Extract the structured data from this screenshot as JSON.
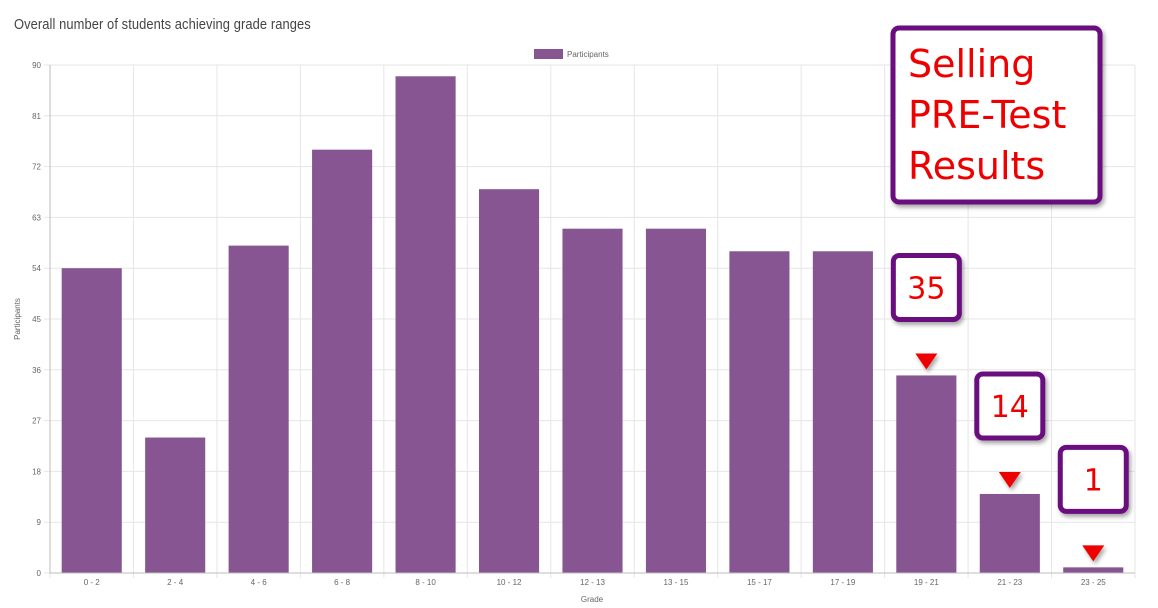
{
  "page": {
    "title": "Overall number of students achieving grade ranges"
  },
  "colors": {
    "bar": "#865592",
    "grid": "#e6e6e6",
    "axis": "#bdbdbd",
    "callout_border": "#6b0f7f",
    "callout_text": "#ee0000",
    "arrow": "#ee0000"
  },
  "chart_data": {
    "type": "bar",
    "xlabel": "Grade",
    "ylabel": "Participants",
    "ylim": [
      0,
      90
    ],
    "yticks": [
      0,
      9,
      18,
      27,
      36,
      45,
      54,
      63,
      72,
      81,
      90
    ],
    "categories": [
      "0 - 2",
      "2 - 4",
      "4 - 6",
      "6 - 8",
      "8 - 10",
      "10 - 12",
      "12 - 13",
      "13 - 15",
      "15 - 17",
      "17 - 19",
      "19 - 21",
      "21 - 23",
      "23 - 25"
    ],
    "series": [
      {
        "name": "Participants",
        "values": [
          54,
          24,
          58,
          75,
          88,
          68,
          61,
          61,
          57,
          57,
          35,
          14,
          1
        ]
      }
    ],
    "legend": "top",
    "grid": true
  },
  "annotations": {
    "title_box": [
      "Selling",
      "PRE-Test",
      "Results"
    ],
    "callouts": [
      {
        "text": "35",
        "category": "19 - 21"
      },
      {
        "text": "14",
        "category": "21 - 23"
      },
      {
        "text": "1",
        "category": "23 - 25"
      }
    ]
  }
}
